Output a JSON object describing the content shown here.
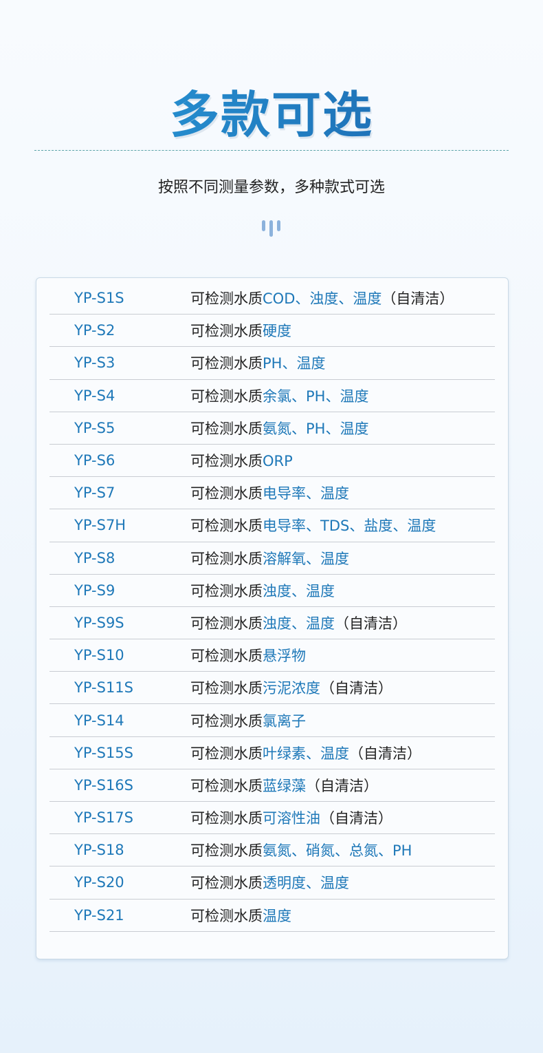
{
  "title": "多款可选",
  "subtitle": "按照不同测量参数，多种款式可选",
  "colors": {
    "accent": "#1e78b8",
    "text": "#222222"
  },
  "prefix": "可检测水质",
  "rows": [
    {
      "model": "YP-S1S",
      "params": "COD、浊度、温度",
      "suffix": "（自清洁）"
    },
    {
      "model": "YP-S2",
      "params": "硬度",
      "suffix": ""
    },
    {
      "model": "YP-S3",
      "params": "PH、温度",
      "suffix": ""
    },
    {
      "model": "YP-S4",
      "params": "余氯、PH、温度",
      "suffix": ""
    },
    {
      "model": "YP-S5",
      "params": "氨氮、PH、温度",
      "suffix": ""
    },
    {
      "model": "YP-S6",
      "params": "ORP",
      "suffix": ""
    },
    {
      "model": "YP-S7",
      "params": "电导率、温度",
      "suffix": ""
    },
    {
      "model": "YP-S7H",
      "params": "电导率、TDS、盐度、温度",
      "suffix": ""
    },
    {
      "model": "YP-S8",
      "params": "溶解氧、温度",
      "suffix": ""
    },
    {
      "model": "YP-S9",
      "params": "浊度、温度",
      "suffix": ""
    },
    {
      "model": "YP-S9S",
      "params": "浊度、温度",
      "suffix": "（自清洁）"
    },
    {
      "model": "YP-S10",
      "params": "悬浮物",
      "suffix": ""
    },
    {
      "model": "YP-S11S",
      "params": "污泥浓度",
      "suffix": "（自清洁）"
    },
    {
      "model": "YP-S14",
      "params": "氯离子",
      "suffix": ""
    },
    {
      "model": "YP-S15S",
      "params": "叶绿素、温度",
      "suffix": "（自清洁）"
    },
    {
      "model": "YP-S16S",
      "params": "蓝绿藻",
      "suffix": "（自清洁）"
    },
    {
      "model": "YP-S17S",
      "params": "可溶性油",
      "suffix": "（自清洁）"
    },
    {
      "model": "YP-S18",
      "params": "氨氮、硝氮、总氮、PH",
      "suffix": ""
    },
    {
      "model": "YP-S20",
      "params": "透明度、温度",
      "suffix": ""
    },
    {
      "model": "YP-S21",
      "params": "温度",
      "suffix": ""
    }
  ]
}
